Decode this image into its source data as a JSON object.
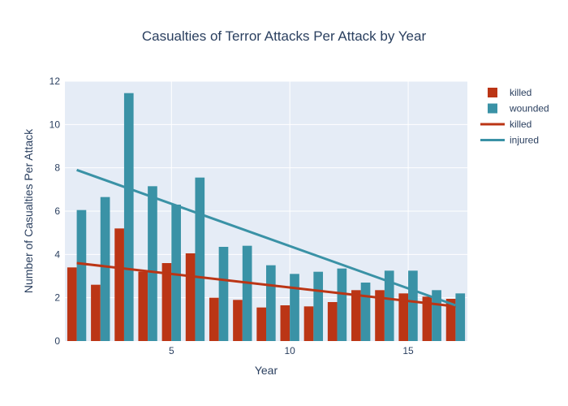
{
  "chart_data": {
    "type": "bar",
    "title": "Casualties of Terror Attacks Per Attack by Year",
    "xlabel": "Year",
    "ylabel": "Number of Casualties Per Attack",
    "xlim": [
      0.5,
      17.5
    ],
    "ylim": [
      0,
      12
    ],
    "x_ticks": [
      5,
      10,
      15
    ],
    "y_ticks": [
      0,
      2,
      4,
      6,
      8,
      10,
      12
    ],
    "grid": true,
    "legend_position": "top-right",
    "x": [
      1,
      2,
      3,
      4,
      5,
      6,
      7,
      8,
      9,
      10,
      11,
      12,
      13,
      14,
      15,
      16,
      17
    ],
    "series": [
      {
        "name": "killed",
        "kind": "bar",
        "color": "#bb3515",
        "values": [
          3.4,
          2.6,
          5.2,
          3.2,
          3.6,
          4.05,
          2.0,
          1.9,
          1.55,
          1.65,
          1.6,
          1.8,
          2.35,
          2.35,
          2.2,
          2.05,
          1.95
        ]
      },
      {
        "name": "wounded",
        "kind": "bar",
        "color": "#3a92a6",
        "values": [
          6.05,
          6.65,
          11.45,
          7.15,
          6.3,
          7.55,
          4.35,
          4.4,
          3.5,
          3.1,
          3.2,
          3.35,
          2.7,
          3.25,
          3.25,
          2.35,
          2.2
        ]
      },
      {
        "name": "killed",
        "kind": "line",
        "color": "#bb3515",
        "x": [
          1,
          17
        ],
        "values": [
          3.6,
          1.6
        ]
      },
      {
        "name": "injured",
        "kind": "line",
        "color": "#3a92a6",
        "x": [
          1,
          17
        ],
        "values": [
          7.9,
          1.65
        ]
      }
    ]
  }
}
